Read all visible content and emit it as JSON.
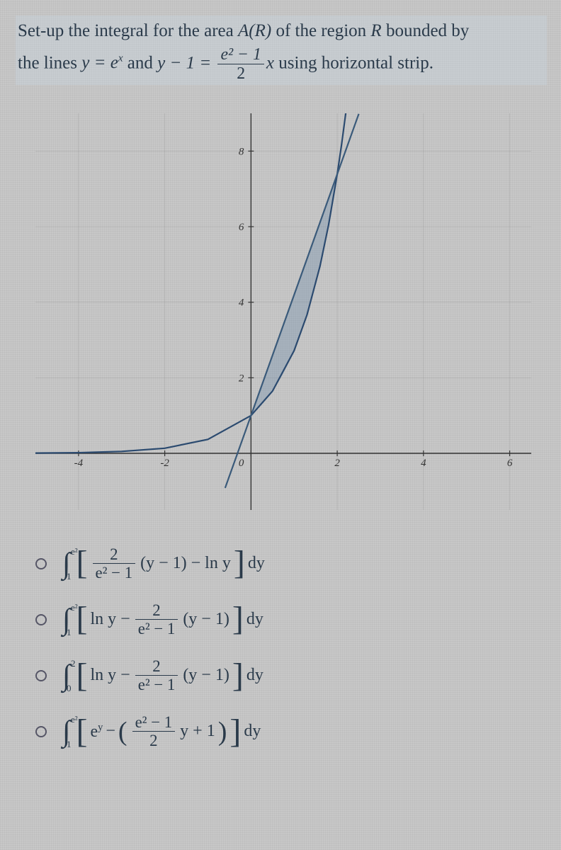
{
  "question": {
    "line1_pre": "Set-up the integral for the area ",
    "AR": "A(R)",
    "line1_post": " of the region ",
    "R": "R",
    "line1_end": " bounded by",
    "line2_pre": "the lines ",
    "eq1_lhs": "y = e",
    "eq1_exp": "x",
    "and": " and ",
    "eq2_lhs": "y − 1 = ",
    "eq2_frac_num": "e² − 1",
    "eq2_frac_den": "2",
    "eq2_var": "x",
    "line2_end": " using horizontal strip."
  },
  "graph": {
    "background_color": "#c8c8c8",
    "axis_color": "#333333",
    "grid_color": "#888888",
    "exp_curve_color": "#2b4a6f",
    "line_color": "#3a5a7a",
    "region_fill": "#6a8aa8",
    "region_opacity": 0.35,
    "xlim": [
      -5,
      6.5
    ],
    "ylim": [
      -1.5,
      9
    ],
    "xtick_step": 2,
    "yticks": [
      2,
      4,
      6,
      8
    ],
    "xtick_labels": [
      "-4",
      "-2",
      "0",
      "2",
      "4",
      "6"
    ],
    "ytick_labels": [
      "2",
      "4",
      "6",
      "8"
    ],
    "tick_fontsize": 15,
    "line_width": 2.2,
    "exp_points": [
      [
        -5,
        0.007
      ],
      [
        -4,
        0.018
      ],
      [
        -3,
        0.05
      ],
      [
        -2,
        0.135
      ],
      [
        -1,
        0.368
      ],
      [
        0,
        1
      ],
      [
        0.5,
        1.649
      ],
      [
        1,
        2.718
      ],
      [
        1.3,
        3.669
      ],
      [
        1.6,
        4.953
      ],
      [
        1.8,
        6.05
      ],
      [
        2,
        7.389
      ],
      [
        2.1,
        8.166
      ],
      [
        2.2,
        9.025
      ]
    ],
    "line_points": [
      [
        -0.6,
        -0.917
      ],
      [
        0,
        1
      ],
      [
        2,
        7.389
      ],
      [
        2.5,
        8.986
      ]
    ]
  },
  "options": {
    "a": {
      "int_lb": "1",
      "int_ub": "e²",
      "frac_num": "2",
      "frac_den": "e² − 1",
      "term1": "(y − 1) − ln y",
      "dy": "dy"
    },
    "b": {
      "int_lb": "1",
      "int_ub": "e²",
      "ln": "ln y − ",
      "frac_num": "2",
      "frac_den": "e² − 1",
      "term": "(y − 1)",
      "dy": "dy"
    },
    "c": {
      "int_lb": "0",
      "int_ub": "2",
      "ln": "ln y − ",
      "frac_num": "2",
      "frac_den": "e² − 1",
      "term": "(y − 1)",
      "dy": "dy"
    },
    "d": {
      "int_lb": "1",
      "int_ub": "e²",
      "ey": "e",
      "ey_exp": "y",
      "minus": " − ",
      "frac_num": "e² − 1",
      "frac_den": "2",
      "term": "y + 1",
      "dy": "dy"
    }
  },
  "colors": {
    "text": "#2a3a4a",
    "radio_border": "#556677"
  }
}
